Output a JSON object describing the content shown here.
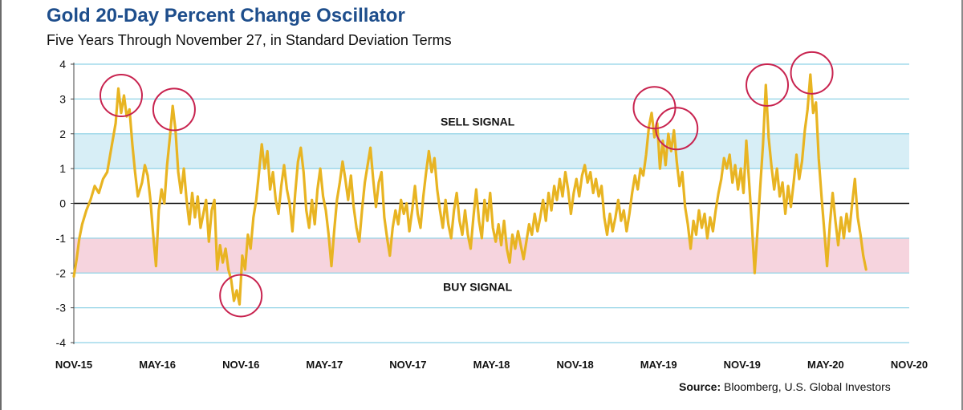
{
  "title": "Gold 20-Day Percent Change Oscillator",
  "subtitle": "Five Years Through November 27, in Standard Deviation Terms",
  "source_label": "Source:",
  "source_text": "Bloomberg, U.S. Global Investors",
  "colors": {
    "title": "#1e4e8c",
    "line": "#e8b422",
    "sell_band": "#d7eef6",
    "buy_band": "#f6d4de",
    "grid": "#8fd2e6",
    "circle": "#c8234f"
  },
  "chart_data": {
    "type": "line",
    "title": "Gold 20-Day Percent Change Oscillator",
    "subtitle": "Five Years Through November 27, in Standard Deviation Terms",
    "ylim": [
      -4,
      4
    ],
    "yticks": [
      4,
      3,
      2,
      1,
      0,
      -1,
      -2,
      -3,
      -4
    ],
    "xlim": [
      0,
      60
    ],
    "xticks": [
      {
        "x": 0,
        "label": "NOV-15"
      },
      {
        "x": 6,
        "label": "MAY-16"
      },
      {
        "x": 12,
        "label": "NOV-16"
      },
      {
        "x": 18,
        "label": "MAY-17"
      },
      {
        "x": 24,
        "label": "NOV-17"
      },
      {
        "x": 30,
        "label": "MAY-18"
      },
      {
        "x": 36,
        "label": "NOV-18"
      },
      {
        "x": 42,
        "label": "MAY-19"
      },
      {
        "x": 48,
        "label": "NOV-19"
      },
      {
        "x": 54,
        "label": "MAY-20"
      },
      {
        "x": 60,
        "label": "NOV-20"
      }
    ],
    "bands": [
      {
        "name": "SELL SIGNAL",
        "y_from": 1,
        "y_to": 2,
        "label_y": 2.35,
        "label_x": 29
      },
      {
        "name": "BUY SIGNAL",
        "y_from": -2,
        "y_to": -1,
        "label_y": -2.4,
        "label_x": 29
      }
    ],
    "grid": true,
    "zero_line": true,
    "series": [
      {
        "values": [
          [
            0.0,
            -2.1
          ],
          [
            0.2,
            -1.6
          ],
          [
            0.4,
            -1.0
          ],
          [
            0.6,
            -0.6
          ],
          [
            0.9,
            -0.2
          ],
          [
            1.2,
            0.1
          ],
          [
            1.5,
            0.5
          ],
          [
            1.8,
            0.3
          ],
          [
            2.1,
            0.7
          ],
          [
            2.4,
            0.9
          ],
          [
            2.7,
            1.6
          ],
          [
            3.0,
            2.3
          ],
          [
            3.2,
            3.3
          ],
          [
            3.4,
            2.6
          ],
          [
            3.6,
            3.1
          ],
          [
            3.8,
            2.5
          ],
          [
            4.0,
            2.7
          ],
          [
            4.2,
            1.7
          ],
          [
            4.4,
            0.9
          ],
          [
            4.6,
            0.2
          ],
          [
            4.9,
            0.6
          ],
          [
            5.1,
            1.1
          ],
          [
            5.3,
            0.8
          ],
          [
            5.5,
            0.1
          ],
          [
            5.7,
            -0.9
          ],
          [
            5.9,
            -1.8
          ],
          [
            6.1,
            -0.2
          ],
          [
            6.3,
            0.4
          ],
          [
            6.5,
            0.0
          ],
          [
            6.7,
            1.1
          ],
          [
            6.9,
            1.9
          ],
          [
            7.1,
            2.8
          ],
          [
            7.3,
            2.1
          ],
          [
            7.5,
            0.9
          ],
          [
            7.7,
            0.3
          ],
          [
            7.9,
            1.0
          ],
          [
            8.1,
            0.1
          ],
          [
            8.3,
            -0.6
          ],
          [
            8.5,
            0.3
          ],
          [
            8.7,
            -0.4
          ],
          [
            8.9,
            0.2
          ],
          [
            9.1,
            -0.7
          ],
          [
            9.3,
            -0.3
          ],
          [
            9.5,
            0.1
          ],
          [
            9.7,
            -1.1
          ],
          [
            9.9,
            -0.2
          ],
          [
            10.1,
            0.1
          ],
          [
            10.3,
            -1.9
          ],
          [
            10.5,
            -1.2
          ],
          [
            10.7,
            -1.7
          ],
          [
            10.9,
            -1.3
          ],
          [
            11.1,
            -1.9
          ],
          [
            11.3,
            -2.2
          ],
          [
            11.5,
            -2.8
          ],
          [
            11.7,
            -2.5
          ],
          [
            11.9,
            -2.9
          ],
          [
            12.1,
            -1.5
          ],
          [
            12.3,
            -1.9
          ],
          [
            12.5,
            -0.9
          ],
          [
            12.7,
            -1.3
          ],
          [
            12.9,
            -0.4
          ],
          [
            13.1,
            0.1
          ],
          [
            13.3,
            0.9
          ],
          [
            13.5,
            1.7
          ],
          [
            13.7,
            1.0
          ],
          [
            13.9,
            1.5
          ],
          [
            14.1,
            0.4
          ],
          [
            14.3,
            0.9
          ],
          [
            14.5,
            0.1
          ],
          [
            14.7,
            -0.3
          ],
          [
            14.9,
            0.5
          ],
          [
            15.1,
            1.1
          ],
          [
            15.3,
            0.4
          ],
          [
            15.5,
            0.0
          ],
          [
            15.7,
            -0.8
          ],
          [
            15.9,
            0.3
          ],
          [
            16.1,
            1.2
          ],
          [
            16.3,
            1.6
          ],
          [
            16.5,
            0.9
          ],
          [
            16.7,
            -0.2
          ],
          [
            16.9,
            -0.7
          ],
          [
            17.1,
            0.1
          ],
          [
            17.3,
            -0.6
          ],
          [
            17.5,
            0.4
          ],
          [
            17.7,
            1.0
          ],
          [
            17.9,
            0.2
          ],
          [
            18.1,
            -0.2
          ],
          [
            18.3,
            -0.9
          ],
          [
            18.5,
            -1.8
          ],
          [
            18.7,
            -0.8
          ],
          [
            18.9,
            0.1
          ],
          [
            19.1,
            0.6
          ],
          [
            19.3,
            1.2
          ],
          [
            19.5,
            0.7
          ],
          [
            19.7,
            0.1
          ],
          [
            19.9,
            0.8
          ],
          [
            20.1,
            -0.1
          ],
          [
            20.3,
            -0.7
          ],
          [
            20.5,
            -1.1
          ],
          [
            20.7,
            -0.2
          ],
          [
            20.9,
            0.6
          ],
          [
            21.1,
            1.1
          ],
          [
            21.3,
            1.6
          ],
          [
            21.5,
            0.7
          ],
          [
            21.7,
            -0.1
          ],
          [
            21.9,
            0.6
          ],
          [
            22.1,
            0.9
          ],
          [
            22.3,
            -0.4
          ],
          [
            22.5,
            -1.0
          ],
          [
            22.7,
            -1.5
          ],
          [
            22.9,
            -0.7
          ],
          [
            23.1,
            -0.2
          ],
          [
            23.3,
            -0.6
          ],
          [
            23.5,
            0.1
          ],
          [
            23.7,
            -0.3
          ],
          [
            23.9,
            0.0
          ],
          [
            24.1,
            -0.8
          ],
          [
            24.3,
            -0.2
          ],
          [
            24.5,
            0.5
          ],
          [
            24.7,
            -0.3
          ],
          [
            24.9,
            -0.7
          ],
          [
            25.1,
            0.2
          ],
          [
            25.3,
            0.9
          ],
          [
            25.5,
            1.5
          ],
          [
            25.7,
            0.9
          ],
          [
            25.9,
            1.3
          ],
          [
            26.1,
            0.4
          ],
          [
            26.3,
            -0.2
          ],
          [
            26.5,
            -0.7
          ],
          [
            26.7,
            0.1
          ],
          [
            26.9,
            -0.6
          ],
          [
            27.1,
            -1.0
          ],
          [
            27.3,
            -0.2
          ],
          [
            27.5,
            0.3
          ],
          [
            27.7,
            -0.5
          ],
          [
            27.9,
            -0.9
          ],
          [
            28.1,
            -0.2
          ],
          [
            28.3,
            -0.9
          ],
          [
            28.5,
            -1.3
          ],
          [
            28.7,
            -0.4
          ],
          [
            28.9,
            0.4
          ],
          [
            29.1,
            -0.5
          ],
          [
            29.3,
            -1.0
          ],
          [
            29.5,
            0.1
          ],
          [
            29.7,
            -0.5
          ],
          [
            29.9,
            0.3
          ],
          [
            30.1,
            -0.7
          ],
          [
            30.3,
            -1.1
          ],
          [
            30.5,
            -0.6
          ],
          [
            30.7,
            -1.2
          ],
          [
            30.9,
            -0.5
          ],
          [
            31.1,
            -1.3
          ],
          [
            31.3,
            -1.7
          ],
          [
            31.5,
            -0.9
          ],
          [
            31.7,
            -1.3
          ],
          [
            31.9,
            -0.8
          ],
          [
            32.1,
            -1.2
          ],
          [
            32.3,
            -1.6
          ],
          [
            32.5,
            -1.1
          ],
          [
            32.7,
            -0.6
          ],
          [
            32.9,
            -0.9
          ],
          [
            33.1,
            -0.3
          ],
          [
            33.3,
            -0.8
          ],
          [
            33.5,
            -0.4
          ],
          [
            33.7,
            0.1
          ],
          [
            33.9,
            -0.5
          ],
          [
            34.1,
            0.3
          ],
          [
            34.3,
            -0.2
          ],
          [
            34.5,
            0.5
          ],
          [
            34.7,
            0.1
          ],
          [
            34.9,
            0.7
          ],
          [
            35.1,
            0.2
          ],
          [
            35.3,
            0.9
          ],
          [
            35.5,
            0.4
          ],
          [
            35.7,
            -0.3
          ],
          [
            35.9,
            0.3
          ],
          [
            36.1,
            0.7
          ],
          [
            36.3,
            0.2
          ],
          [
            36.5,
            0.8
          ],
          [
            36.7,
            1.1
          ],
          [
            36.9,
            0.6
          ],
          [
            37.1,
            0.9
          ],
          [
            37.3,
            0.3
          ],
          [
            37.5,
            0.7
          ],
          [
            37.7,
            0.2
          ],
          [
            37.9,
            0.5
          ],
          [
            38.1,
            -0.4
          ],
          [
            38.3,
            -0.9
          ],
          [
            38.5,
            -0.3
          ],
          [
            38.7,
            -0.8
          ],
          [
            38.9,
            -0.4
          ],
          [
            39.1,
            0.1
          ],
          [
            39.3,
            -0.5
          ],
          [
            39.5,
            -0.2
          ],
          [
            39.7,
            -0.8
          ],
          [
            39.9,
            -0.3
          ],
          [
            40.1,
            0.3
          ],
          [
            40.3,
            0.8
          ],
          [
            40.5,
            0.4
          ],
          [
            40.7,
            1.0
          ],
          [
            40.9,
            0.8
          ],
          [
            41.1,
            1.4
          ],
          [
            41.3,
            2.2
          ],
          [
            41.5,
            2.6
          ],
          [
            41.7,
            1.9
          ],
          [
            41.9,
            2.3
          ],
          [
            42.1,
            1.0
          ],
          [
            42.3,
            1.8
          ],
          [
            42.5,
            1.1
          ],
          [
            42.7,
            2.0
          ],
          [
            42.9,
            1.5
          ],
          [
            43.1,
            2.1
          ],
          [
            43.3,
            1.2
          ],
          [
            43.5,
            0.5
          ],
          [
            43.7,
            0.9
          ],
          [
            43.9,
            -0.1
          ],
          [
            44.1,
            -0.6
          ],
          [
            44.3,
            -1.3
          ],
          [
            44.5,
            -0.5
          ],
          [
            44.7,
            -0.9
          ],
          [
            44.9,
            -0.2
          ],
          [
            45.1,
            -0.7
          ],
          [
            45.3,
            -0.3
          ],
          [
            45.5,
            -1.0
          ],
          [
            45.7,
            -0.4
          ],
          [
            45.9,
            -0.8
          ],
          [
            46.1,
            -0.2
          ],
          [
            46.3,
            0.3
          ],
          [
            46.5,
            0.7
          ],
          [
            46.7,
            1.3
          ],
          [
            46.9,
            1.0
          ],
          [
            47.1,
            1.4
          ],
          [
            47.3,
            0.6
          ],
          [
            47.5,
            1.1
          ],
          [
            47.7,
            0.4
          ],
          [
            47.9,
            1.0
          ],
          [
            48.1,
            0.3
          ],
          [
            48.3,
            1.8
          ],
          [
            48.5,
            0.6
          ],
          [
            48.7,
            -0.6
          ],
          [
            48.9,
            -2.0
          ],
          [
            49.1,
            -0.8
          ],
          [
            49.3,
            0.5
          ],
          [
            49.5,
            1.7
          ],
          [
            49.7,
            3.4
          ],
          [
            49.9,
            1.9
          ],
          [
            50.1,
            1.1
          ],
          [
            50.3,
            0.4
          ],
          [
            50.5,
            1.0
          ],
          [
            50.7,
            0.2
          ],
          [
            50.9,
            0.6
          ],
          [
            51.1,
            -0.3
          ],
          [
            51.3,
            0.5
          ],
          [
            51.5,
            -0.1
          ],
          [
            51.7,
            0.6
          ],
          [
            51.9,
            1.4
          ],
          [
            52.1,
            0.7
          ],
          [
            52.3,
            1.2
          ],
          [
            52.5,
            2.1
          ],
          [
            52.7,
            2.7
          ],
          [
            52.9,
            3.7
          ],
          [
            53.1,
            2.6
          ],
          [
            53.3,
            2.9
          ],
          [
            53.5,
            1.3
          ],
          [
            53.7,
            0.2
          ],
          [
            53.9,
            -0.8
          ],
          [
            54.1,
            -1.8
          ],
          [
            54.3,
            -0.6
          ],
          [
            54.5,
            0.3
          ],
          [
            54.7,
            -0.5
          ],
          [
            54.9,
            -1.2
          ],
          [
            55.1,
            -0.4
          ],
          [
            55.3,
            -1.0
          ],
          [
            55.5,
            -0.3
          ],
          [
            55.7,
            -0.8
          ],
          [
            55.9,
            0.0
          ],
          [
            56.1,
            0.7
          ],
          [
            56.3,
            -0.4
          ],
          [
            56.5,
            -0.9
          ],
          [
            56.7,
            -1.5
          ],
          [
            56.9,
            -1.9
          ]
        ]
      }
    ],
    "circled_points": [
      {
        "x": 3.4,
        "y": 3.1
      },
      {
        "x": 7.2,
        "y": 2.7
      },
      {
        "x": 12.0,
        "y": -2.65
      },
      {
        "x": 41.7,
        "y": 2.75
      },
      {
        "x": 43.3,
        "y": 2.15
      },
      {
        "x": 49.8,
        "y": 3.4
      },
      {
        "x": 53.0,
        "y": 3.75
      }
    ]
  }
}
